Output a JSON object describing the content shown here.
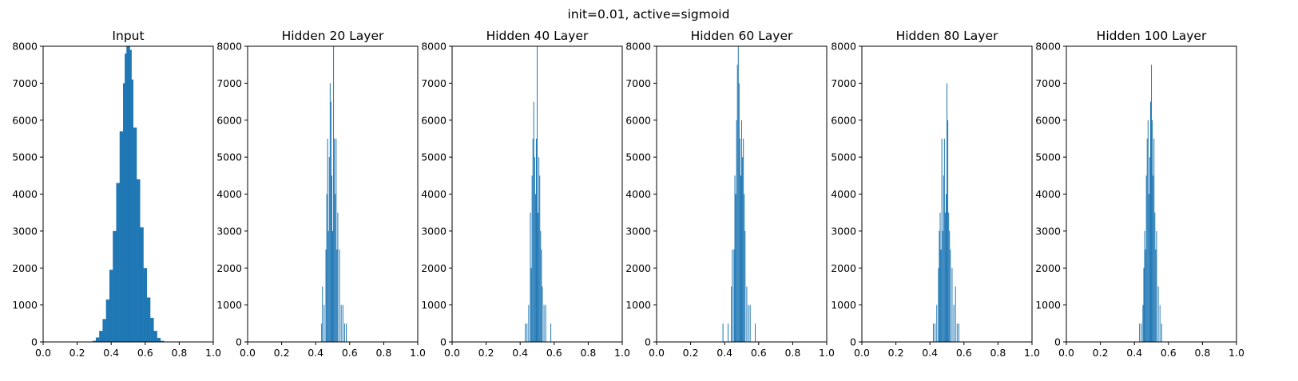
{
  "figure": {
    "suptitle": "init=0.01, active=sigmoid"
  },
  "chart_data": [
    {
      "type": "bar",
      "title": "Input",
      "xlabel": "",
      "ylabel": "",
      "xlim": [
        0,
        1
      ],
      "ylim": [
        0,
        8000
      ],
      "xticks": [
        "0.0",
        "0.2",
        "0.4",
        "0.6",
        "0.8",
        "1.0"
      ],
      "yticks": [
        "0",
        "1000",
        "2000",
        "3000",
        "4000",
        "5000",
        "6000",
        "7000",
        "8000"
      ],
      "bar_color": "#1f77b4",
      "bins": [
        {
          "x": 0.3,
          "y": 30
        },
        {
          "x": 0.32,
          "y": 120
        },
        {
          "x": 0.34,
          "y": 300
        },
        {
          "x": 0.36,
          "y": 620
        },
        {
          "x": 0.38,
          "y": 1150
        },
        {
          "x": 0.4,
          "y": 1950
        },
        {
          "x": 0.42,
          "y": 3000
        },
        {
          "x": 0.44,
          "y": 4300
        },
        {
          "x": 0.46,
          "y": 5700
        },
        {
          "x": 0.48,
          "y": 7000
        },
        {
          "x": 0.49,
          "y": 7800
        },
        {
          "x": 0.5,
          "y": 8000
        },
        {
          "x": 0.51,
          "y": 7900
        },
        {
          "x": 0.52,
          "y": 7100
        },
        {
          "x": 0.54,
          "y": 5800
        },
        {
          "x": 0.56,
          "y": 4400
        },
        {
          "x": 0.58,
          "y": 3100
        },
        {
          "x": 0.6,
          "y": 2000
        },
        {
          "x": 0.62,
          "y": 1200
        },
        {
          "x": 0.64,
          "y": 650
        },
        {
          "x": 0.66,
          "y": 300
        },
        {
          "x": 0.68,
          "y": 110
        },
        {
          "x": 0.7,
          "y": 30
        }
      ]
    },
    {
      "type": "bar",
      "title": "Hidden 20 Layer",
      "xlabel": "",
      "ylabel": "",
      "xlim": [
        0,
        1
      ],
      "ylim": [
        0,
        8000
      ],
      "xticks": [
        "0.0",
        "0.2",
        "0.4",
        "0.6",
        "0.8",
        "1.0"
      ],
      "yticks": [
        "0",
        "1000",
        "2000",
        "3000",
        "4000",
        "5000",
        "6000",
        "7000",
        "8000"
      ],
      "bar_color": "#1f77b4",
      "bins": [
        {
          "x": 0.435,
          "y": 500
        },
        {
          "x": 0.44,
          "y": 1500
        },
        {
          "x": 0.45,
          "y": 1000
        },
        {
          "x": 0.46,
          "y": 2500
        },
        {
          "x": 0.465,
          "y": 4000
        },
        {
          "x": 0.47,
          "y": 5500
        },
        {
          "x": 0.475,
          "y": 3000
        },
        {
          "x": 0.48,
          "y": 5000
        },
        {
          "x": 0.485,
          "y": 7000
        },
        {
          "x": 0.49,
          "y": 6500
        },
        {
          "x": 0.495,
          "y": 4500
        },
        {
          "x": 0.5,
          "y": 3000
        },
        {
          "x": 0.505,
          "y": 8000
        },
        {
          "x": 0.51,
          "y": 5500
        },
        {
          "x": 0.515,
          "y": 4000
        },
        {
          "x": 0.52,
          "y": 5500
        },
        {
          "x": 0.525,
          "y": 2500
        },
        {
          "x": 0.53,
          "y": 3500
        },
        {
          "x": 0.54,
          "y": 2500
        },
        {
          "x": 0.55,
          "y": 1000
        },
        {
          "x": 0.56,
          "y": 1000
        },
        {
          "x": 0.57,
          "y": 500
        },
        {
          "x": 0.58,
          "y": 500
        }
      ]
    },
    {
      "type": "bar",
      "title": "Hidden 40 Layer",
      "xlabel": "",
      "ylabel": "",
      "xlim": [
        0,
        1
      ],
      "ylim": [
        0,
        8000
      ],
      "xticks": [
        "0.0",
        "0.2",
        "0.4",
        "0.6",
        "0.8",
        "1.0"
      ],
      "yticks": [
        "0",
        "1000",
        "2000",
        "3000",
        "4000",
        "5000",
        "6000",
        "7000",
        "8000"
      ],
      "bar_color": "#1f77b4",
      "bins": [
        {
          "x": 0.43,
          "y": 500
        },
        {
          "x": 0.44,
          "y": 500
        },
        {
          "x": 0.45,
          "y": 1000
        },
        {
          "x": 0.46,
          "y": 3500
        },
        {
          "x": 0.465,
          "y": 2000
        },
        {
          "x": 0.47,
          "y": 4500
        },
        {
          "x": 0.475,
          "y": 5500
        },
        {
          "x": 0.48,
          "y": 6500
        },
        {
          "x": 0.485,
          "y": 5000
        },
        {
          "x": 0.49,
          "y": 4000
        },
        {
          "x": 0.495,
          "y": 5500
        },
        {
          "x": 0.5,
          "y": 8000
        },
        {
          "x": 0.505,
          "y": 3500
        },
        {
          "x": 0.51,
          "y": 5000
        },
        {
          "x": 0.515,
          "y": 4500
        },
        {
          "x": 0.52,
          "y": 3000
        },
        {
          "x": 0.525,
          "y": 2500
        },
        {
          "x": 0.53,
          "y": 1500
        },
        {
          "x": 0.54,
          "y": 1000
        },
        {
          "x": 0.55,
          "y": 1000
        },
        {
          "x": 0.58,
          "y": 500
        }
      ]
    },
    {
      "type": "bar",
      "title": "Hidden 60 Layer",
      "xlabel": "",
      "ylabel": "",
      "xlim": [
        0,
        1
      ],
      "ylim": [
        0,
        8000
      ],
      "xticks": [
        "0.0",
        "0.2",
        "0.4",
        "0.6",
        "0.8",
        "1.0"
      ],
      "yticks": [
        "0",
        "1000",
        "2000",
        "3000",
        "4000",
        "5000",
        "6000",
        "7000",
        "8000"
      ],
      "bar_color": "#1f77b4",
      "bins": [
        {
          "x": 0.39,
          "y": 500
        },
        {
          "x": 0.42,
          "y": 500
        },
        {
          "x": 0.44,
          "y": 1500
        },
        {
          "x": 0.445,
          "y": 2500
        },
        {
          "x": 0.455,
          "y": 2500
        },
        {
          "x": 0.46,
          "y": 4500
        },
        {
          "x": 0.465,
          "y": 4000
        },
        {
          "x": 0.47,
          "y": 6000
        },
        {
          "x": 0.475,
          "y": 7500
        },
        {
          "x": 0.48,
          "y": 8000
        },
        {
          "x": 0.485,
          "y": 7000
        },
        {
          "x": 0.49,
          "y": 5500
        },
        {
          "x": 0.495,
          "y": 4500
        },
        {
          "x": 0.5,
          "y": 6000
        },
        {
          "x": 0.505,
          "y": 5000
        },
        {
          "x": 0.51,
          "y": 5500
        },
        {
          "x": 0.515,
          "y": 4000
        },
        {
          "x": 0.52,
          "y": 3000
        },
        {
          "x": 0.53,
          "y": 1500
        },
        {
          "x": 0.54,
          "y": 1000
        },
        {
          "x": 0.55,
          "y": 1000
        },
        {
          "x": 0.58,
          "y": 500
        }
      ]
    },
    {
      "type": "bar",
      "title": "Hidden 80 Layer",
      "xlabel": "",
      "ylabel": "",
      "xlim": [
        0,
        1
      ],
      "ylim": [
        0,
        8000
      ],
      "xticks": [
        "0.0",
        "0.2",
        "0.4",
        "0.6",
        "0.8",
        "1.0"
      ],
      "yticks": [
        "0",
        "1000",
        "2000",
        "3000",
        "4000",
        "5000",
        "6000",
        "7000",
        "8000"
      ],
      "bar_color": "#1f77b4",
      "bins": [
        {
          "x": 0.42,
          "y": 500
        },
        {
          "x": 0.43,
          "y": 500
        },
        {
          "x": 0.44,
          "y": 1000
        },
        {
          "x": 0.45,
          "y": 2000
        },
        {
          "x": 0.455,
          "y": 3000
        },
        {
          "x": 0.46,
          "y": 3500
        },
        {
          "x": 0.465,
          "y": 2500
        },
        {
          "x": 0.47,
          "y": 5500
        },
        {
          "x": 0.475,
          "y": 3000
        },
        {
          "x": 0.48,
          "y": 4500
        },
        {
          "x": 0.485,
          "y": 5500
        },
        {
          "x": 0.49,
          "y": 3500
        },
        {
          "x": 0.495,
          "y": 4000
        },
        {
          "x": 0.5,
          "y": 7000
        },
        {
          "x": 0.505,
          "y": 6000
        },
        {
          "x": 0.51,
          "y": 3500
        },
        {
          "x": 0.515,
          "y": 3000
        },
        {
          "x": 0.52,
          "y": 2500
        },
        {
          "x": 0.53,
          "y": 2000
        },
        {
          "x": 0.54,
          "y": 1000
        },
        {
          "x": 0.55,
          "y": 1500
        },
        {
          "x": 0.56,
          "y": 500
        },
        {
          "x": 0.57,
          "y": 500
        }
      ]
    },
    {
      "type": "bar",
      "title": "Hidden 100 Layer",
      "xlabel": "",
      "ylabel": "",
      "xlim": [
        0,
        1
      ],
      "ylim": [
        0,
        8000
      ],
      "xticks": [
        "0.0",
        "0.2",
        "0.4",
        "0.6",
        "0.8",
        "1.0"
      ],
      "yticks": [
        "0",
        "1000",
        "2000",
        "3000",
        "4000",
        "5000",
        "6000",
        "7000",
        "8000"
      ],
      "bar_color": "#1f77b4",
      "bins": [
        {
          "x": 0.43,
          "y": 500
        },
        {
          "x": 0.44,
          "y": 500
        },
        {
          "x": 0.45,
          "y": 1000
        },
        {
          "x": 0.455,
          "y": 2000
        },
        {
          "x": 0.46,
          "y": 3000
        },
        {
          "x": 0.465,
          "y": 2500
        },
        {
          "x": 0.47,
          "y": 4500
        },
        {
          "x": 0.475,
          "y": 5500
        },
        {
          "x": 0.48,
          "y": 6000
        },
        {
          "x": 0.485,
          "y": 4000
        },
        {
          "x": 0.49,
          "y": 5000
        },
        {
          "x": 0.495,
          "y": 6500
        },
        {
          "x": 0.5,
          "y": 7500
        },
        {
          "x": 0.505,
          "y": 6000
        },
        {
          "x": 0.51,
          "y": 4500
        },
        {
          "x": 0.515,
          "y": 5500
        },
        {
          "x": 0.52,
          "y": 3500
        },
        {
          "x": 0.525,
          "y": 2500
        },
        {
          "x": 0.53,
          "y": 3000
        },
        {
          "x": 0.54,
          "y": 1500
        },
        {
          "x": 0.55,
          "y": 1000
        },
        {
          "x": 0.56,
          "y": 500
        }
      ]
    }
  ]
}
